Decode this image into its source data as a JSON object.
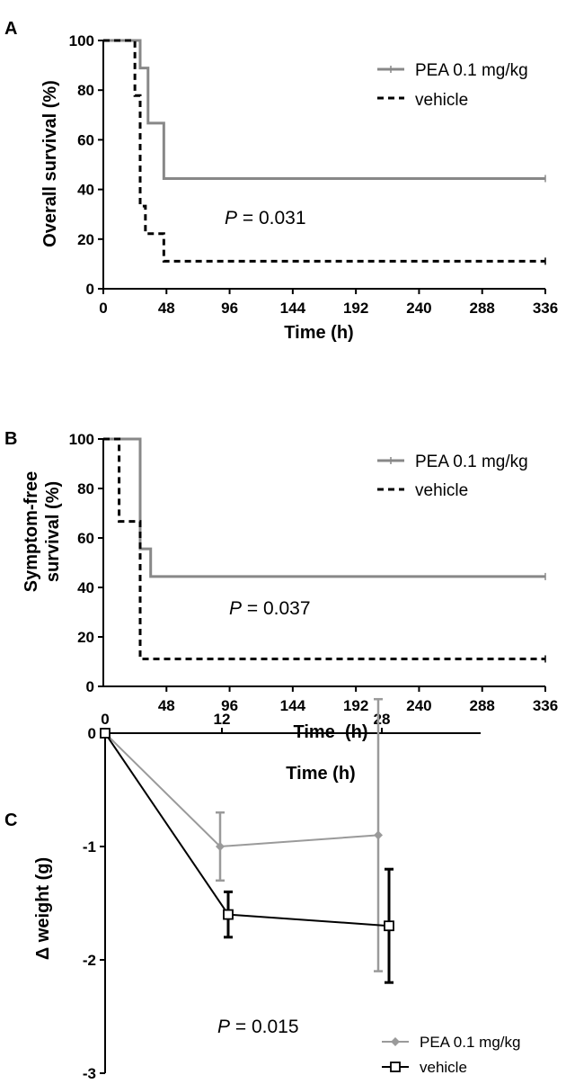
{
  "chart_data": [
    {
      "panel": "A",
      "type": "line",
      "subtype": "kaplan-meier",
      "xlabel": "Time (h)",
      "ylabel": "Overall survival (%)",
      "xlim": [
        0,
        336
      ],
      "ylim": [
        0,
        100
      ],
      "xticks": [
        "0",
        "48",
        "96",
        "144",
        "192",
        "240",
        "288",
        "336"
      ],
      "yticks": [
        "0",
        "20",
        "40",
        "60",
        "80",
        "100"
      ],
      "legend_position": "top-right",
      "annotation": {
        "prefix": "P",
        "text": " = 0.031"
      },
      "series": [
        {
          "name": "PEA 0.1 mg/kg",
          "color": "#888888",
          "style": "solid",
          "x": [
            0,
            28,
            28,
            34,
            34,
            46,
            46,
            336
          ],
          "y": [
            100,
            100,
            88.9,
            88.9,
            66.7,
            66.7,
            44.4,
            44.4
          ]
        },
        {
          "name": "vehicle",
          "color": "#000000",
          "style": "dashed",
          "x": [
            0,
            24,
            24,
            28,
            28,
            32,
            32,
            46,
            46,
            336
          ],
          "y": [
            100,
            100,
            77.8,
            77.8,
            33.3,
            33.3,
            22.2,
            22.2,
            11.1,
            11.1
          ]
        }
      ]
    },
    {
      "panel": "B",
      "type": "line",
      "subtype": "kaplan-meier",
      "xlabel": "Time  (h)",
      "ylabel": [
        "Symptom-free",
        "survival (%)"
      ],
      "xlim": [
        0,
        336
      ],
      "ylim": [
        0,
        100
      ],
      "xticks": [
        "48",
        "96",
        "144",
        "192",
        "240",
        "288",
        "336"
      ],
      "yticks": [
        "0",
        "20",
        "40",
        "60",
        "80",
        "100"
      ],
      "legend_position": "top-right",
      "annotation": {
        "prefix": "P",
        "text": " = 0.037"
      },
      "series": [
        {
          "name": "PEA 0.1 mg/kg",
          "color": "#888888",
          "style": "solid",
          "x": [
            0,
            28,
            28,
            36,
            36,
            336
          ],
          "y": [
            100,
            100,
            55.6,
            55.6,
            44.4,
            44.4
          ]
        },
        {
          "name": "vehicle",
          "color": "#000000",
          "style": "dashed",
          "x": [
            0,
            12,
            12,
            28,
            28,
            336
          ],
          "y": [
            100,
            100,
            66.7,
            66.7,
            11.1,
            11.1
          ]
        }
      ]
    },
    {
      "panel": "C",
      "type": "line",
      "xlabel": "Time (h)",
      "ylabel": "Δ weight (g)",
      "x_axis_position": "top",
      "xticks": [
        "0",
        "12",
        "28"
      ],
      "yticks": [
        "0",
        "-1",
        "-2",
        "-3"
      ],
      "ylim": [
        -3,
        0
      ],
      "legend_position": "bottom-right",
      "annotation": {
        "prefix": "P",
        "text": " = 0.015"
      },
      "series": [
        {
          "name": "PEA 0.1 mg/kg",
          "color": "#9a9a9a",
          "marker": "diamond",
          "x": [
            0,
            12,
            28
          ],
          "y": [
            0,
            -1.0,
            -0.9
          ],
          "err": [
            0,
            0.3,
            1.2
          ]
        },
        {
          "name": "vehicle",
          "color": "#000000",
          "marker": "open-square",
          "x": [
            0,
            12,
            28
          ],
          "y": [
            0,
            -1.6,
            -1.7
          ],
          "err": [
            0,
            0.2,
            0.5
          ]
        }
      ]
    }
  ]
}
